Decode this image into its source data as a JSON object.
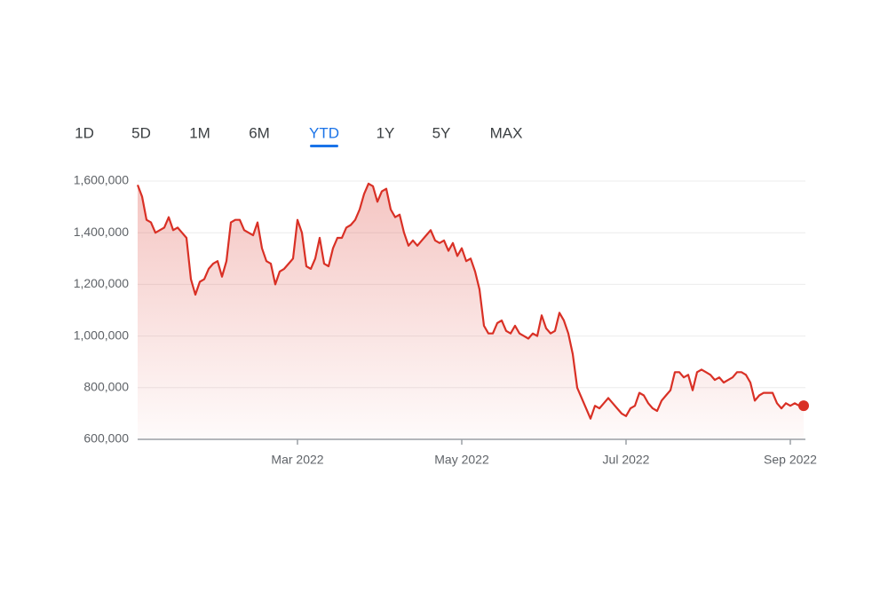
{
  "tabs": {
    "items": [
      "1D",
      "5D",
      "1M",
      "6M",
      "YTD",
      "1Y",
      "5Y",
      "MAX"
    ],
    "selected": 4
  },
  "chart_data": {
    "type": "line",
    "color": "#d93025",
    "grid": true,
    "ylim": [
      600000,
      1600000
    ],
    "yticks": [
      {
        "value": 600000,
        "label": "600,000"
      },
      {
        "value": 800000,
        "label": "800,000"
      },
      {
        "value": 1000000,
        "label": "1,000,000"
      },
      {
        "value": 1200000,
        "label": "1,200,000"
      },
      {
        "value": 1400000,
        "label": "1,400,000"
      },
      {
        "value": 1600000,
        "label": "1,600,000"
      }
    ],
    "categories": [
      null,
      null,
      null,
      null,
      null,
      null,
      null,
      null,
      null,
      null,
      null,
      null,
      null,
      null,
      null,
      null,
      null,
      null,
      null,
      null,
      null,
      null,
      null,
      null,
      null,
      null,
      null,
      null,
      null,
      null,
      null,
      null,
      null,
      null,
      null,
      null,
      "Mar 2022",
      null,
      null,
      null,
      null,
      null,
      null,
      null,
      null,
      null,
      null,
      null,
      null,
      null,
      null,
      null,
      null,
      null,
      null,
      null,
      null,
      null,
      null,
      null,
      null,
      null,
      null,
      null,
      null,
      null,
      null,
      null,
      null,
      null,
      null,
      null,
      null,
      "May 2022",
      null,
      null,
      null,
      null,
      null,
      null,
      null,
      null,
      null,
      null,
      null,
      null,
      null,
      null,
      null,
      null,
      null,
      null,
      null,
      null,
      null,
      null,
      null,
      null,
      null,
      null,
      null,
      null,
      null,
      null,
      null,
      null,
      null,
      null,
      null,
      null,
      "Jul 2022",
      null,
      null,
      null,
      null,
      null,
      null,
      null,
      null,
      null,
      null,
      null,
      null,
      null,
      null,
      null,
      null,
      null,
      null,
      null,
      null,
      null,
      null,
      null,
      null,
      null,
      null,
      null,
      null,
      null,
      null,
      null,
      null,
      null,
      null,
      null,
      null,
      "Sep 2022",
      null,
      null,
      null
    ],
    "values": [
      1585000,
      1540000,
      1450000,
      1440000,
      1400000,
      1410000,
      1420000,
      1460000,
      1410000,
      1420000,
      1400000,
      1380000,
      1220000,
      1160000,
      1210000,
      1220000,
      1260000,
      1280000,
      1290000,
      1230000,
      1290000,
      1440000,
      1450000,
      1450000,
      1410000,
      1400000,
      1390000,
      1440000,
      1340000,
      1290000,
      1280000,
      1200000,
      1250000,
      1260000,
      1280000,
      1300000,
      1450000,
      1400000,
      1270000,
      1260000,
      1300000,
      1380000,
      1280000,
      1270000,
      1340000,
      1380000,
      1380000,
      1420000,
      1430000,
      1450000,
      1490000,
      1550000,
      1590000,
      1580000,
      1520000,
      1560000,
      1570000,
      1490000,
      1460000,
      1470000,
      1400000,
      1350000,
      1370000,
      1350000,
      1370000,
      1390000,
      1410000,
      1370000,
      1360000,
      1370000,
      1330000,
      1360000,
      1310000,
      1340000,
      1290000,
      1300000,
      1250000,
      1180000,
      1040000,
      1010000,
      1010000,
      1050000,
      1060000,
      1020000,
      1010000,
      1040000,
      1010000,
      1000000,
      990000,
      1010000,
      1000000,
      1080000,
      1030000,
      1010000,
      1020000,
      1090000,
      1060000,
      1010000,
      930000,
      800000,
      760000,
      720000,
      680000,
      730000,
      720000,
      740000,
      760000,
      740000,
      720000,
      700000,
      690000,
      720000,
      730000,
      780000,
      770000,
      740000,
      720000,
      710000,
      750000,
      770000,
      790000,
      860000,
      860000,
      840000,
      850000,
      790000,
      860000,
      870000,
      860000,
      850000,
      830000,
      840000,
      820000,
      830000,
      840000,
      860000,
      860000,
      850000,
      820000,
      750000,
      770000,
      780000,
      780000,
      780000,
      740000,
      720000,
      740000,
      730000,
      740000,
      730000,
      730000
    ]
  }
}
